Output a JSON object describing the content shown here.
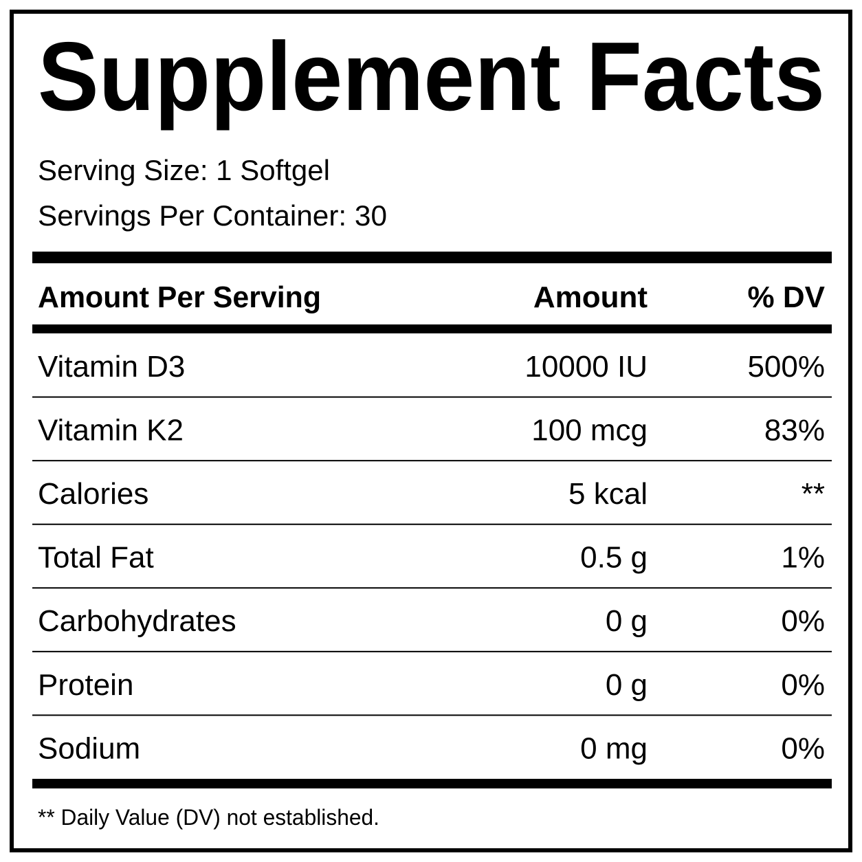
{
  "title": "Supplement Facts",
  "serving_size": "Serving Size: 1 Softgel",
  "servings_per_container": "Servings Per Container: 30",
  "table": {
    "header": [
      "Amount Per Serving",
      "Amount",
      "% DV"
    ],
    "rows": [
      [
        "Vitamin D3",
        "10000 IU",
        "500%"
      ],
      [
        "Vitamin K2",
        "100 mcg",
        "83%"
      ],
      [
        "Calories",
        "5 kcal",
        "**"
      ],
      [
        "Total Fat",
        "0.5 g",
        "1%"
      ],
      [
        "Carbohydrates",
        "0 g",
        "0%"
      ],
      [
        "Protein",
        "0 g",
        "0%"
      ],
      [
        "Sodium",
        "0 mg",
        "0%"
      ]
    ]
  },
  "footnote": "** Daily Value (DV) not established."
}
